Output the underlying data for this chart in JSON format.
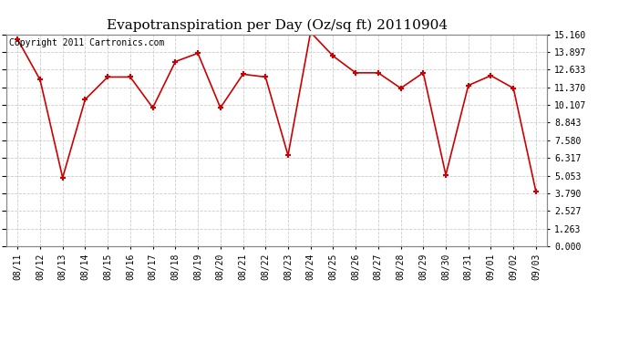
{
  "title": "Evapotranspiration per Day (Oz/sq ft) 20110904",
  "copyright": "Copyright 2011 Cartronics.com",
  "x_labels": [
    "08/11",
    "08/12",
    "08/13",
    "08/14",
    "08/15",
    "08/16",
    "08/17",
    "08/18",
    "08/19",
    "08/20",
    "08/21",
    "08/22",
    "08/23",
    "08/24",
    "08/25",
    "08/26",
    "08/27",
    "08/28",
    "08/29",
    "08/30",
    "08/31",
    "09/01",
    "09/02",
    "09/03"
  ],
  "y_values": [
    14.8,
    11.9,
    4.9,
    10.5,
    12.1,
    12.1,
    9.9,
    13.2,
    13.8,
    9.9,
    12.3,
    12.1,
    6.5,
    15.3,
    13.6,
    12.4,
    12.4,
    11.3,
    12.4,
    5.1,
    11.5,
    12.2,
    11.3,
    3.9
  ],
  "line_color": "#cc0000",
  "marker_color": "#cc0000",
  "background_color": "#ffffff",
  "plot_bg_color": "#ffffff",
  "grid_color": "#cccccc",
  "ylim": [
    0.0,
    15.16
  ],
  "yticks": [
    0.0,
    1.263,
    2.527,
    3.79,
    5.053,
    6.317,
    7.58,
    8.843,
    10.107,
    11.37,
    12.633,
    13.897,
    15.16
  ],
  "title_fontsize": 11,
  "copyright_fontsize": 7,
  "tick_fontsize": 7
}
